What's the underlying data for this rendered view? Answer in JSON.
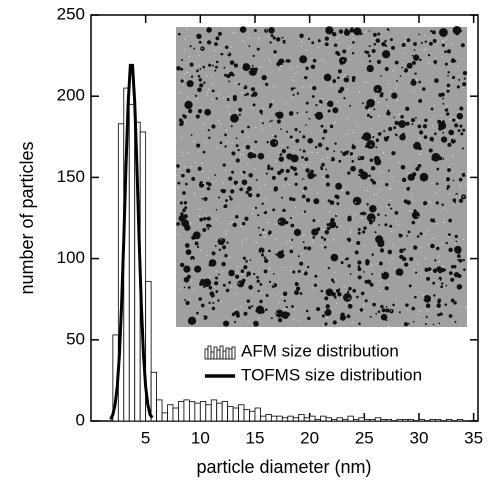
{
  "chart_data": {
    "type": "histogram",
    "xlabel": "particle diameter (nm)",
    "ylabel": "number of particles",
    "xlim": [
      0,
      35.4
    ],
    "ylim": [
      0,
      250
    ],
    "xticks": [
      5,
      10,
      15,
      20,
      25,
      30,
      35
    ],
    "yticks": [
      0,
      50,
      100,
      150,
      200,
      250
    ],
    "legend": "lower right",
    "bins": [
      2,
      2.5,
      3,
      3.5,
      4,
      4.5,
      5,
      5.5,
      6,
      6.5,
      7,
      7.5,
      8,
      8.5,
      9,
      9.5,
      10,
      10.5,
      11,
      11.5,
      12,
      12.5,
      13,
      13.5,
      14,
      14.5,
      15,
      15.5,
      16,
      16.5,
      17,
      17.5,
      18,
      18.5,
      19,
      19.5,
      20,
      20.5,
      21,
      21.5,
      22,
      22.5,
      23,
      23.5,
      24,
      24.5,
      25,
      25.5,
      26,
      26.5,
      27,
      27.5,
      28,
      28.5,
      29,
      29.5,
      30,
      30.5,
      31,
      31.5,
      32,
      32.5,
      33,
      33.5,
      34
    ],
    "series": [
      {
        "name": "AFM size distribution",
        "type": "histogram",
        "color": "#000000",
        "values": [
          53,
          183,
          205,
          195,
          184,
          178,
          86,
          30,
          13,
          5,
          10,
          8,
          12,
          13,
          12,
          11,
          12,
          10,
          13,
          11,
          12,
          9,
          8,
          10,
          7,
          6,
          8,
          3,
          4,
          3,
          3,
          2,
          3,
          2,
          4,
          2,
          3,
          1,
          3,
          2,
          1,
          2,
          1,
          3,
          1,
          2,
          1,
          1,
          2,
          1,
          1,
          0,
          1,
          1,
          1,
          0,
          1,
          0,
          1,
          1,
          0,
          1,
          0,
          1
        ]
      },
      {
        "name": "TOFMS size distribution",
        "type": "line",
        "color": "#000000",
        "x": [
          1.8,
          2.0,
          2.2,
          2.4,
          2.6,
          2.8,
          3.0,
          3.2,
          3.4,
          3.6,
          3.8,
          4.0,
          4.2,
          4.4,
          4.6,
          4.8,
          5.0,
          5.2,
          5.4,
          5.6
        ],
        "values": [
          1,
          4,
          10,
          21,
          41,
          72,
          112,
          157,
          196,
          219,
          219,
          196,
          157,
          112,
          72,
          41,
          21,
          10,
          4,
          2
        ]
      }
    ]
  }
}
